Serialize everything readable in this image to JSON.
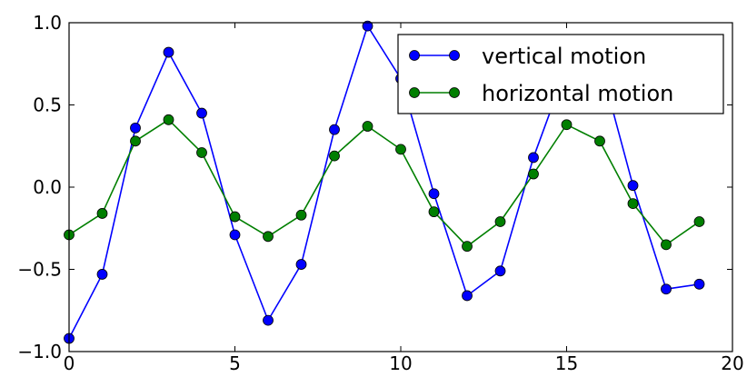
{
  "chart_data": {
    "type": "line",
    "title": "",
    "xlabel": "",
    "ylabel": "",
    "xlim": [
      0,
      20
    ],
    "ylim": [
      -1.0,
      1.0
    ],
    "grid": false,
    "legend_position": "top-right",
    "x_ticks": [
      {
        "value": 0,
        "label": "0"
      },
      {
        "value": 5,
        "label": "5"
      },
      {
        "value": 10,
        "label": "10"
      },
      {
        "value": 15,
        "label": "15"
      },
      {
        "value": 20,
        "label": "20"
      }
    ],
    "y_ticks": [
      {
        "value": -1.0,
        "label": "−1.0"
      },
      {
        "value": -0.5,
        "label": "−0.5"
      },
      {
        "value": 0.0,
        "label": "0.0"
      },
      {
        "value": 0.5,
        "label": "0.5"
      },
      {
        "value": 1.0,
        "label": "1.0"
      }
    ],
    "x": [
      0,
      1,
      2,
      3,
      4,
      5,
      6,
      7,
      8,
      9,
      10,
      11,
      12,
      13,
      14,
      15,
      16,
      17,
      18,
      19
    ],
    "series": [
      {
        "name": "vertical motion",
        "color": "#0000ff",
        "marker": "circle",
        "values": [
          -0.92,
          -0.53,
          0.36,
          0.82,
          0.45,
          -0.29,
          -0.81,
          -0.47,
          0.35,
          0.98,
          0.66,
          -0.04,
          -0.66,
          -0.51,
          0.18,
          0.73,
          0.76,
          0.01,
          -0.62,
          -0.59
        ]
      },
      {
        "name": "horizontal motion",
        "color": "#007f00",
        "marker": "circle",
        "values": [
          -0.29,
          -0.16,
          0.28,
          0.41,
          0.21,
          -0.18,
          -0.3,
          -0.17,
          0.19,
          0.37,
          0.23,
          -0.15,
          -0.36,
          -0.21,
          0.08,
          0.38,
          0.28,
          -0.1,
          -0.35,
          -0.21
        ]
      }
    ]
  }
}
